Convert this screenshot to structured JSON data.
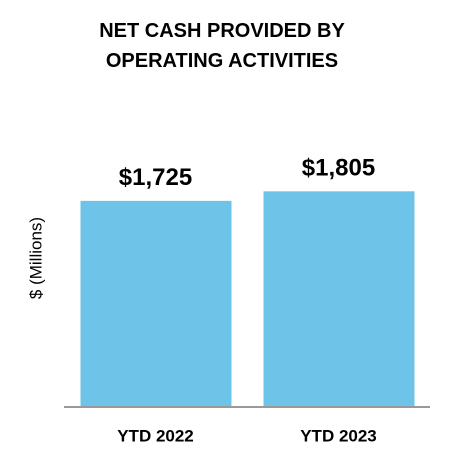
{
  "chart_data": {
    "type": "bar",
    "title": "NET CASH PROVIDED BY OPERATING ACTIVITIES",
    "y_label": "$ (Millions)",
    "categories": [
      "YTD 2022",
      "YTD 2023"
    ],
    "values": [
      1725,
      1805
    ],
    "value_labels": [
      "$1,725",
      "$1,805"
    ],
    "color": "#6ec4e8",
    "ylim": [
      0,
      2000
    ]
  }
}
